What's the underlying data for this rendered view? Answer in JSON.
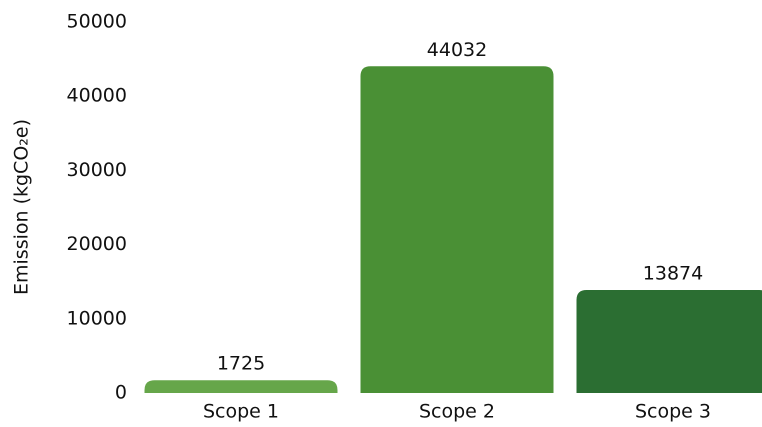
{
  "chart_data": {
    "type": "bar",
    "y_label": "Emission (kgCO₂e)",
    "categories": [
      "Scope 1",
      "Scope 2",
      "Scope 3"
    ],
    "values": [
      1725,
      44032,
      13874
    ],
    "colors": [
      "#66a64a",
      "#4a9035",
      "#2b6e32"
    ],
    "ylim": [
      0,
      50000
    ],
    "yticks": [
      0,
      10000,
      20000,
      30000,
      40000,
      50000
    ],
    "grid": false,
    "show_value_labels": true
  }
}
